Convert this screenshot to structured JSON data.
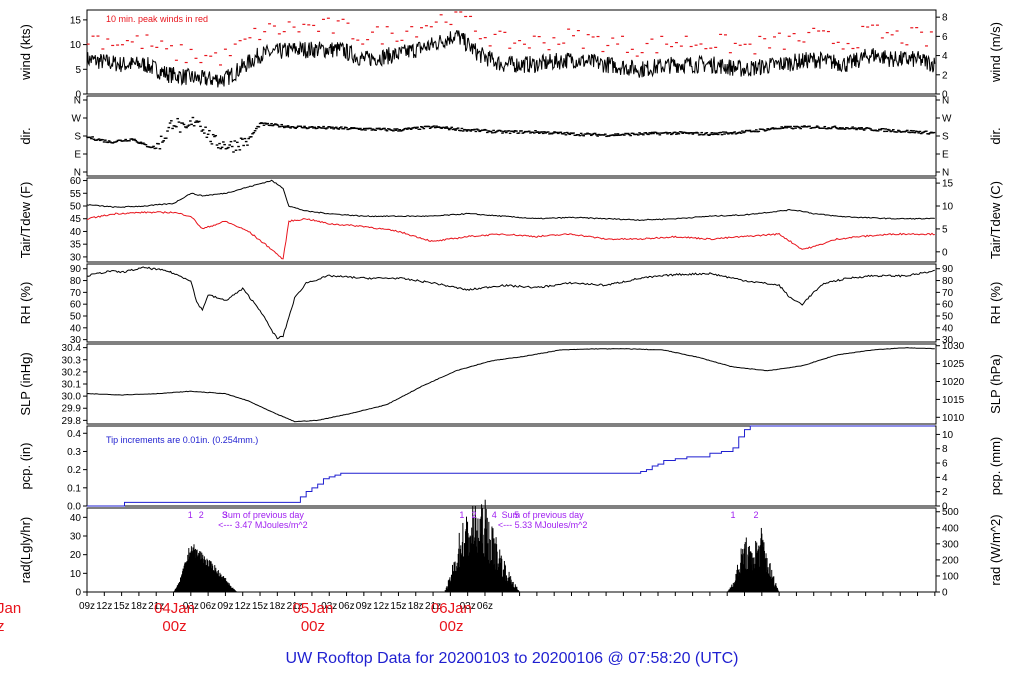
{
  "chart_data": {
    "type": "line",
    "title": "UW Rooftop Data for 20200103  to  20200106 @ 07:58:20  (UTC)",
    "x_ticks": [
      "09z",
      "12z",
      "15z",
      "18z",
      "21z",
      "03z",
      "06z",
      "09z",
      "12z",
      "15z",
      "18z",
      "21z",
      "03z",
      "06z",
      "09z",
      "12z",
      "15z",
      "18z",
      "21z",
      "03z",
      "06z"
    ],
    "day_labels": [
      {
        "date": "04Jan",
        "time": "00z"
      },
      {
        "date": "05Jan",
        "time": "00z"
      },
      {
        "date": "06Jan",
        "time": "00z"
      }
    ],
    "clipped_left_label": {
      "date": "Jan",
      "time": "z"
    },
    "panels": [
      {
        "name": "wind",
        "left_label": "wind (kts)",
        "right_label": "wind (m/s)",
        "left_ticks": [
          0,
          5,
          10,
          15
        ],
        "right_ticks": [
          0,
          2,
          4,
          6,
          8
        ],
        "ylim": [
          0,
          17
        ],
        "annotation": "10 min. peak winds in red",
        "hours": [
          0,
          6,
          10,
          14,
          20,
          24,
          30,
          36,
          44,
          48,
          54,
          60,
          64,
          68,
          72,
          78,
          84,
          90,
          96,
          102,
          108,
          114,
          120,
          126,
          132,
          136,
          140,
          144,
          147
        ],
        "mean_kts": [
          7,
          6,
          6,
          4,
          3,
          3,
          8,
          9,
          9,
          7,
          8,
          10,
          12,
          8,
          6,
          6,
          7,
          6,
          5,
          6,
          6,
          5,
          6,
          7,
          6,
          8,
          7,
          7,
          6
        ]
      },
      {
        "name": "direction",
        "left_label": "dir.",
        "right_label": "dir.",
        "left_ticks": [
          "N",
          "W",
          "S",
          "E",
          "N"
        ],
        "right_ticks": [
          "N",
          "W",
          "S",
          "E",
          "N"
        ],
        "hours": [
          0,
          4,
          8,
          10,
          12,
          14,
          15,
          17,
          19,
          22,
          25,
          28,
          30,
          36,
          42,
          48,
          54,
          60,
          66,
          72,
          78,
          84,
          90,
          96,
          102,
          108,
          114,
          120,
          126,
          132,
          138,
          144,
          147
        ],
        "deg": [
          175,
          150,
          165,
          135,
          120,
          200,
          260,
          200,
          270,
          150,
          130,
          160,
          240,
          225,
          220,
          215,
          210,
          225,
          210,
          200,
          200,
          190,
          185,
          190,
          195,
          190,
          200,
          220,
          225,
          220,
          210,
          200,
          195
        ]
      },
      {
        "name": "temperature",
        "left_label": "Tair/Tdew (F)",
        "right_label": "Tair/Tdew (C)",
        "left_ticks": [
          30,
          35,
          40,
          45,
          50,
          55,
          60
        ],
        "right_ticks": [
          0,
          5,
          10,
          15
        ],
        "ylim": [
          28,
          61
        ],
        "hours": [
          0,
          5,
          10,
          15,
          18,
          20,
          24,
          28,
          32,
          34,
          35,
          38,
          42,
          48,
          54,
          60,
          66,
          72,
          78,
          84,
          90,
          96,
          102,
          108,
          114,
          120,
          122,
          124,
          126,
          130,
          134,
          140,
          147
        ],
        "tair_f": [
          50.5,
          49.5,
          50,
          51,
          55,
          54,
          55,
          57.5,
          60,
          57,
          50,
          48,
          47,
          46,
          46,
          46,
          47,
          46,
          45,
          45.5,
          45,
          44.5,
          45,
          46,
          46.5,
          48,
          48.5,
          48,
          47,
          46,
          45.5,
          45,
          45
        ],
        "tdew_f": [
          45,
          47,
          47.5,
          47.5,
          46,
          41,
          44,
          40,
          33,
          29,
          44,
          45,
          43,
          42,
          40,
          36,
          38,
          39,
          38,
          39,
          37,
          37,
          38,
          37,
          38,
          39,
          36,
          33,
          34,
          37,
          38,
          39,
          39
        ]
      },
      {
        "name": "rh",
        "left_label": "RH (%)",
        "right_label": "RH (%)",
        "left_ticks": [
          30,
          40,
          50,
          60,
          70,
          80,
          90
        ],
        "right_ticks": [
          30,
          40,
          50,
          60,
          70,
          80,
          90
        ],
        "ylim": [
          28,
          94
        ],
        "hours": [
          0,
          4,
          6,
          10,
          14,
          18,
          19,
          20,
          21,
          24,
          27,
          30,
          32,
          33,
          34,
          36,
          38,
          42,
          48,
          54,
          60,
          66,
          72,
          78,
          84,
          90,
          96,
          102,
          108,
          114,
          120,
          122,
          124,
          126,
          128,
          132,
          136,
          142,
          147
        ],
        "rh": [
          84,
          88,
          87,
          91,
          88,
          80,
          62,
          55,
          68,
          63,
          73,
          55,
          38,
          31,
          33,
          65,
          78,
          84,
          82,
          82,
          78,
          72,
          76,
          74,
          78,
          76,
          82,
          85,
          86,
          80,
          76,
          65,
          60,
          70,
          78,
          82,
          84,
          84,
          88
        ]
      },
      {
        "name": "slp",
        "left_label": "SLP (inHg)",
        "right_label": "SLP (hPa)",
        "left_ticks": [
          29.8,
          29.9,
          30.0,
          30.1,
          30.2,
          30.3,
          30.4
        ],
        "right_ticks": [
          1010,
          1015,
          1020,
          1025,
          1030
        ],
        "ylim": [
          29.77,
          30.43
        ],
        "hours": [
          0,
          6,
          12,
          18,
          24,
          28,
          32,
          36,
          40,
          46,
          52,
          58,
          64,
          70,
          76,
          82,
          88,
          94,
          100,
          106,
          112,
          118,
          124,
          130,
          136,
          142,
          147
        ],
        "slp_inhg": [
          30.02,
          30.01,
          30.02,
          30.04,
          30.02,
          29.96,
          29.87,
          29.79,
          29.8,
          29.86,
          29.93,
          30.08,
          30.21,
          30.29,
          30.33,
          30.38,
          30.39,
          30.39,
          30.38,
          30.32,
          30.24,
          30.21,
          30.25,
          30.34,
          30.38,
          30.4,
          30.39
        ]
      },
      {
        "name": "precip",
        "left_label": "pcp. (in)",
        "right_label": "pcp. (mm)",
        "left_ticks": [
          0.0,
          0.1,
          0.2,
          0.3,
          0.4
        ],
        "right_ticks": [
          0,
          2,
          4,
          6,
          8,
          10
        ],
        "ylim": [
          0,
          0.44
        ],
        "annotation": "Tip increments are 0.01in. (0.254mm.)",
        "hours": [
          0,
          6,
          6.5,
          36,
          37,
          38,
          39,
          40,
          41,
          42,
          43,
          44,
          72,
          96,
          97,
          98,
          99,
          100,
          102,
          104,
          108,
          110,
          112,
          113,
          114,
          115,
          147
        ],
        "pcp_in": [
          0,
          0,
          0.02,
          0.02,
          0.05,
          0.08,
          0.1,
          0.12,
          0.15,
          0.16,
          0.17,
          0.18,
          0.18,
          0.19,
          0.2,
          0.22,
          0.23,
          0.25,
          0.26,
          0.27,
          0.29,
          0.3,
          0.32,
          0.38,
          0.42,
          0.44,
          0.44
        ]
      },
      {
        "name": "radiation",
        "left_label": "rad(Lgly/hr)",
        "right_label": "rad (W/m^2)",
        "left_ticks": [
          0,
          10,
          20,
          30,
          40
        ],
        "right_ticks": [
          0,
          100,
          200,
          300,
          400,
          500
        ],
        "ylim": [
          0,
          45
        ],
        "day_sums": [
          "Sum of previous day",
          "<--- 3.47 MJoules/m^2",
          "Sum of previous day",
          "<--- 5.33 MJoules/m^2"
        ],
        "hour_marks": [
          {
            "label": "1",
            "hour": 17.9
          },
          {
            "label": "2",
            "hour": 19.8
          },
          {
            "label": "3",
            "hour": 23.9
          },
          {
            "label": "1",
            "hour": 65
          },
          {
            "label": "2",
            "hour": 67.1
          },
          {
            "label": "4",
            "hour": 70.6
          },
          {
            "label": "5",
            "hour": 74.5
          },
          {
            "label": "1",
            "hour": 112
          },
          {
            "label": "2",
            "hour": 116
          }
        ],
        "hours": [
          15,
          16,
          17,
          18,
          19,
          20,
          21,
          22,
          23,
          24,
          25,
          26,
          62,
          63,
          64,
          65,
          66,
          67,
          68,
          69,
          70,
          71,
          72,
          73,
          74,
          75,
          111,
          112,
          113,
          114,
          115,
          116,
          117,
          118,
          119,
          120
        ],
        "rad_lgly": [
          0,
          5,
          15,
          25,
          22,
          20,
          16,
          14,
          10,
          7,
          3,
          0,
          0,
          8,
          20,
          33,
          36,
          40,
          38,
          42,
          32,
          25,
          18,
          10,
          5,
          0,
          0,
          5,
          15,
          27,
          20,
          25,
          30,
          18,
          8,
          0
        ]
      }
    ],
    "annotation_colors": {
      "peak": "#e8141c",
      "tip": "#1f1fd0",
      "rad": "#a020f0",
      "day": "#e8141c",
      "footer": "#1f1fd0"
    }
  }
}
